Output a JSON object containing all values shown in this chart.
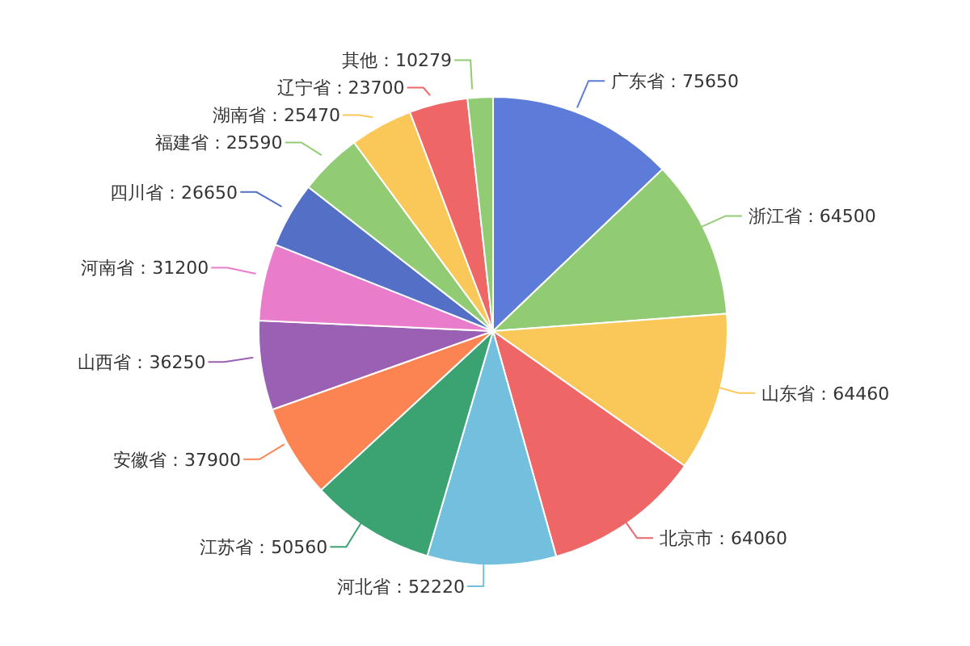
{
  "chart_data": {
    "type": "pie",
    "categories": [
      "广东省",
      "浙江省",
      "山东省",
      "北京市",
      "河北省",
      "江苏省",
      "安徽省",
      "山西省",
      "河南省",
      "四川省",
      "福建省",
      "湖南省",
      "辽宁省",
      "其他"
    ],
    "values": [
      75650,
      64500,
      64460,
      64060,
      52220,
      50560,
      37900,
      36250,
      31200,
      26650,
      25590,
      25470,
      23700,
      10279
    ],
    "colors": [
      "#5d7bd8",
      "#91cb74",
      "#fac858",
      "#ee6666",
      "#73c0de",
      "#3ba272",
      "#fc8452",
      "#9a60b4",
      "#ea7ccc",
      "#5470c6",
      "#91cc75",
      "#fac858",
      "#ee6666",
      "#91cc75"
    ],
    "value_labels": [
      "：75650",
      "：64500",
      "：64460",
      "：64060",
      "：52220",
      "：50560",
      "：37900",
      "：36250",
      "：31200",
      "：26650",
      "：25590",
      "：25470",
      "：23700",
      "：10279"
    ],
    "legend": false
  }
}
